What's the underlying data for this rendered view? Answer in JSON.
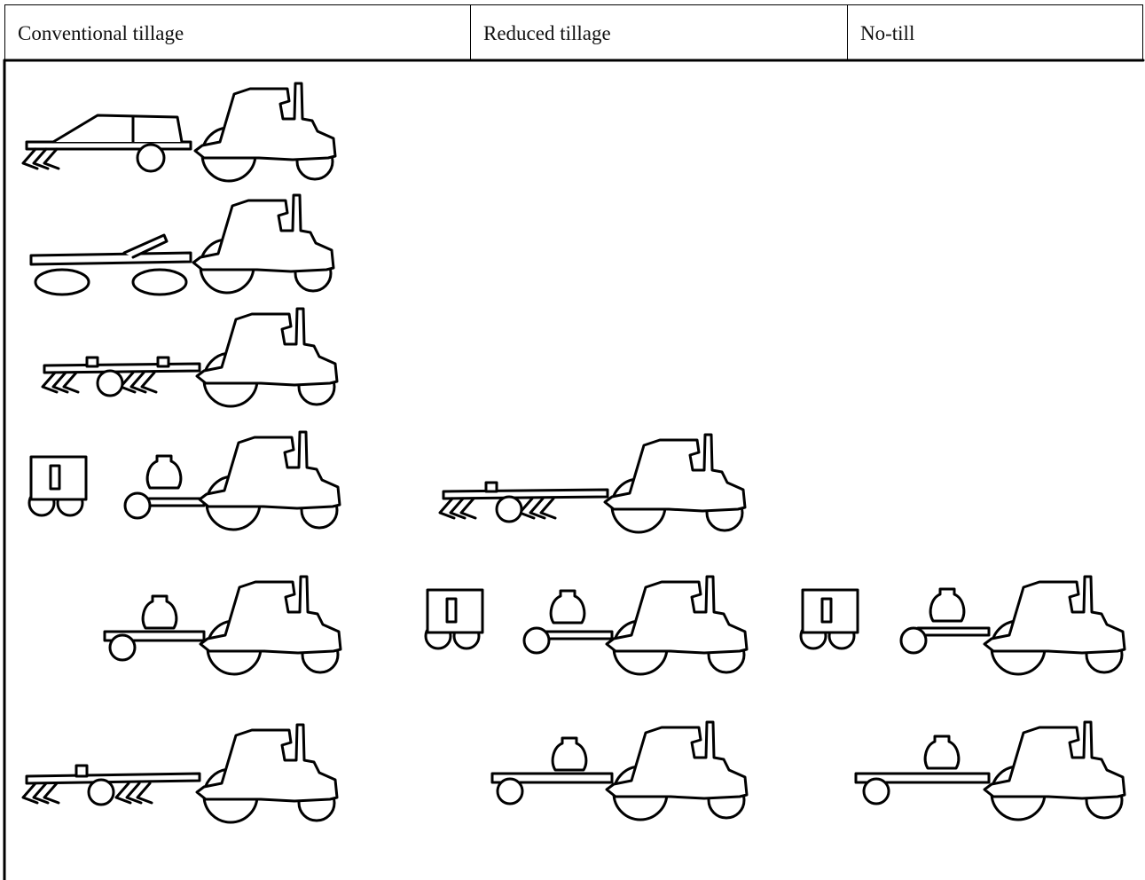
{
  "header": {
    "columns": [
      "Conventional tillage",
      "Reduced tillage",
      "No-till"
    ]
  }
}
